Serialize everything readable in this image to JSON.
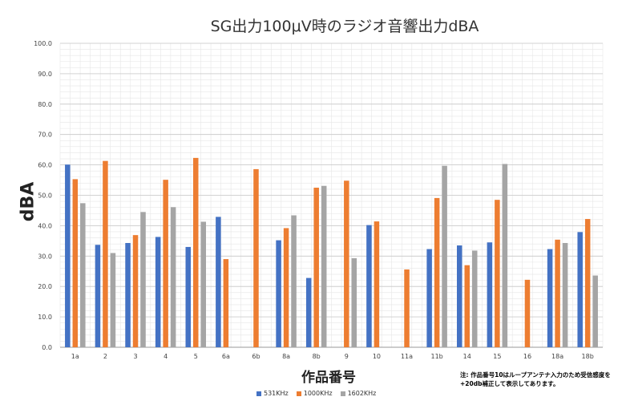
{
  "chart_data": {
    "type": "bar",
    "title": "SG出力100μV時のラジオ音響出力dBA",
    "xlabel": "作品番号",
    "ylabel": "dBA",
    "ylim": [
      0,
      100
    ],
    "y_ticks": [
      "0.0",
      "10.0",
      "20.0",
      "30.0",
      "40.0",
      "50.0",
      "60.0",
      "70.0",
      "80.0",
      "90.0",
      "100.0"
    ],
    "grid": true,
    "legend_position": "bottom",
    "categories": [
      "1a",
      "2",
      "3",
      "4",
      "5",
      "6a",
      "6b",
      "8a",
      "8b",
      "9",
      "10",
      "11a",
      "11b",
      "14",
      "15",
      "16",
      "18a",
      "18b"
    ],
    "series": [
      {
        "name": "531KHz",
        "color": "#4472C4",
        "values": [
          60.1,
          33.7,
          34.3,
          36.3,
          33.0,
          42.9,
          null,
          35.2,
          22.8,
          null,
          40.2,
          null,
          32.3,
          33.5,
          34.5,
          null,
          32.3,
          37.9
        ]
      },
      {
        "name": "1000KHz",
        "color": "#ED7D31",
        "values": [
          55.3,
          61.3,
          36.9,
          55.1,
          62.3,
          29.0,
          58.6,
          39.2,
          52.5,
          54.8,
          41.4,
          25.6,
          49.1,
          27.0,
          48.5,
          22.2,
          35.4,
          42.2
        ]
      },
      {
        "name": "1602KHz",
        "color": "#A5A5A5",
        "values": [
          47.4,
          31.0,
          44.5,
          46.1,
          41.3,
          null,
          null,
          43.4,
          53.1,
          29.3,
          null,
          null,
          59.7,
          31.8,
          60.3,
          null,
          34.3,
          23.6
        ]
      }
    ],
    "note": "注: 作品番号10はループアンテナ入力のため受信感度を+20db補正して表示してあります。"
  }
}
